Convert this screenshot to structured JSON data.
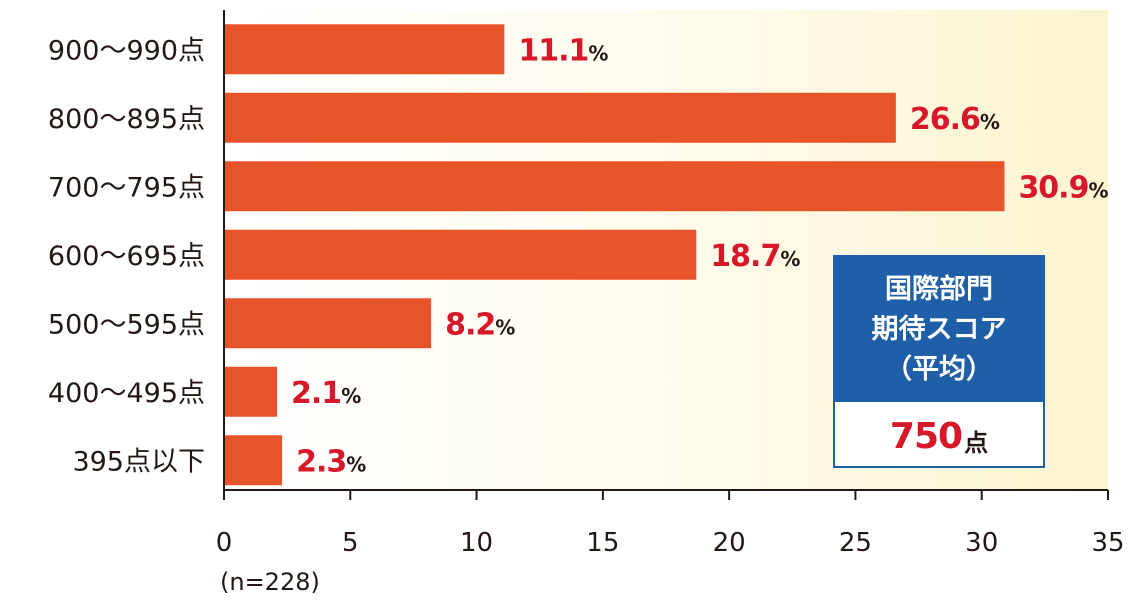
{
  "chart_data": {
    "type": "bar",
    "orientation": "horizontal",
    "categories": [
      "900〜990点",
      "800〜895点",
      "700〜795点",
      "600〜695点",
      "500〜595点",
      "400〜495点",
      "395点以下"
    ],
    "values": [
      11.1,
      26.6,
      30.9,
      18.7,
      8.2,
      2.1,
      2.3
    ],
    "value_labels": [
      "11.1",
      "26.6",
      "30.9",
      "18.7",
      "8.2",
      "2.1",
      "2.3"
    ],
    "value_suffix": "%",
    "xlim": [
      0,
      35
    ],
    "xticks": [
      0,
      5,
      10,
      15,
      20,
      25,
      30,
      35
    ],
    "note": "(n=228)",
    "bar_color": "#e8542a",
    "background_color": "#fdf8dc",
    "grid": false
  },
  "average_box": {
    "title_lines": [
      "国際部門",
      "期待スコア",
      "（平均）"
    ],
    "value": "750",
    "unit": "点",
    "header_color": "#1f5fa8"
  }
}
